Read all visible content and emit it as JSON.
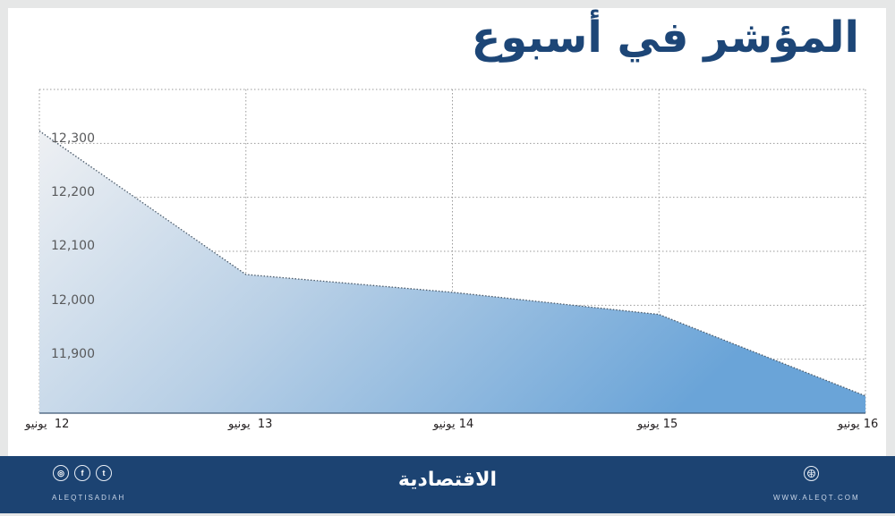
{
  "title": "المؤشر في أسبوع",
  "chart_data": {
    "type": "area",
    "title": "المؤشر في أسبوع",
    "xlabel": "",
    "ylabel": "",
    "categories": [
      "12 يونيو",
      "13 يونيو",
      "14 يونيو",
      "15 يونيو",
      "16 يونيو"
    ],
    "values": [
      12323,
      12057,
      12024,
      11983,
      11832
    ],
    "ylim": [
      11800,
      12400
    ],
    "yticks": [
      "12,300",
      "12,200",
      "12,100",
      "12,000",
      "11,900"
    ],
    "ytick_values": [
      12300,
      12200,
      12100,
      12000,
      11900
    ],
    "grid": true,
    "legend": null,
    "fill_gradient": [
      "#eef0f3",
      "#6ea6d8"
    ],
    "line_color": "#4a5a6a"
  },
  "xaxis": {
    "labels": [
      {
        "day": "12",
        "month": "يونيو"
      },
      {
        "day": "13",
        "month": "يونيو"
      },
      {
        "day": "14",
        "month": "يونيو"
      },
      {
        "day": "15",
        "month": "يونيو"
      },
      {
        "day": "16",
        "month": "يونيو"
      }
    ]
  },
  "yaxis": {
    "labels": [
      "12,300",
      "12,200",
      "12,100",
      "12,000",
      "11,900"
    ]
  },
  "footer": {
    "social_handle": "ALEQTISADIAH",
    "brand": "الاقتصادية",
    "website": "WWW.ALEQT.COM",
    "icons": [
      "instagram-icon",
      "facebook-icon",
      "twitter-icon",
      "globe-icon"
    ],
    "social_glyphs": {
      "instagram": "◎",
      "facebook": "f",
      "twitter": "t"
    }
  },
  "colors": {
    "title": "#1d4677",
    "footer_bg": "#1c4372",
    "page_bg": "#e6e7e7",
    "grid": "#9a9a9a"
  }
}
